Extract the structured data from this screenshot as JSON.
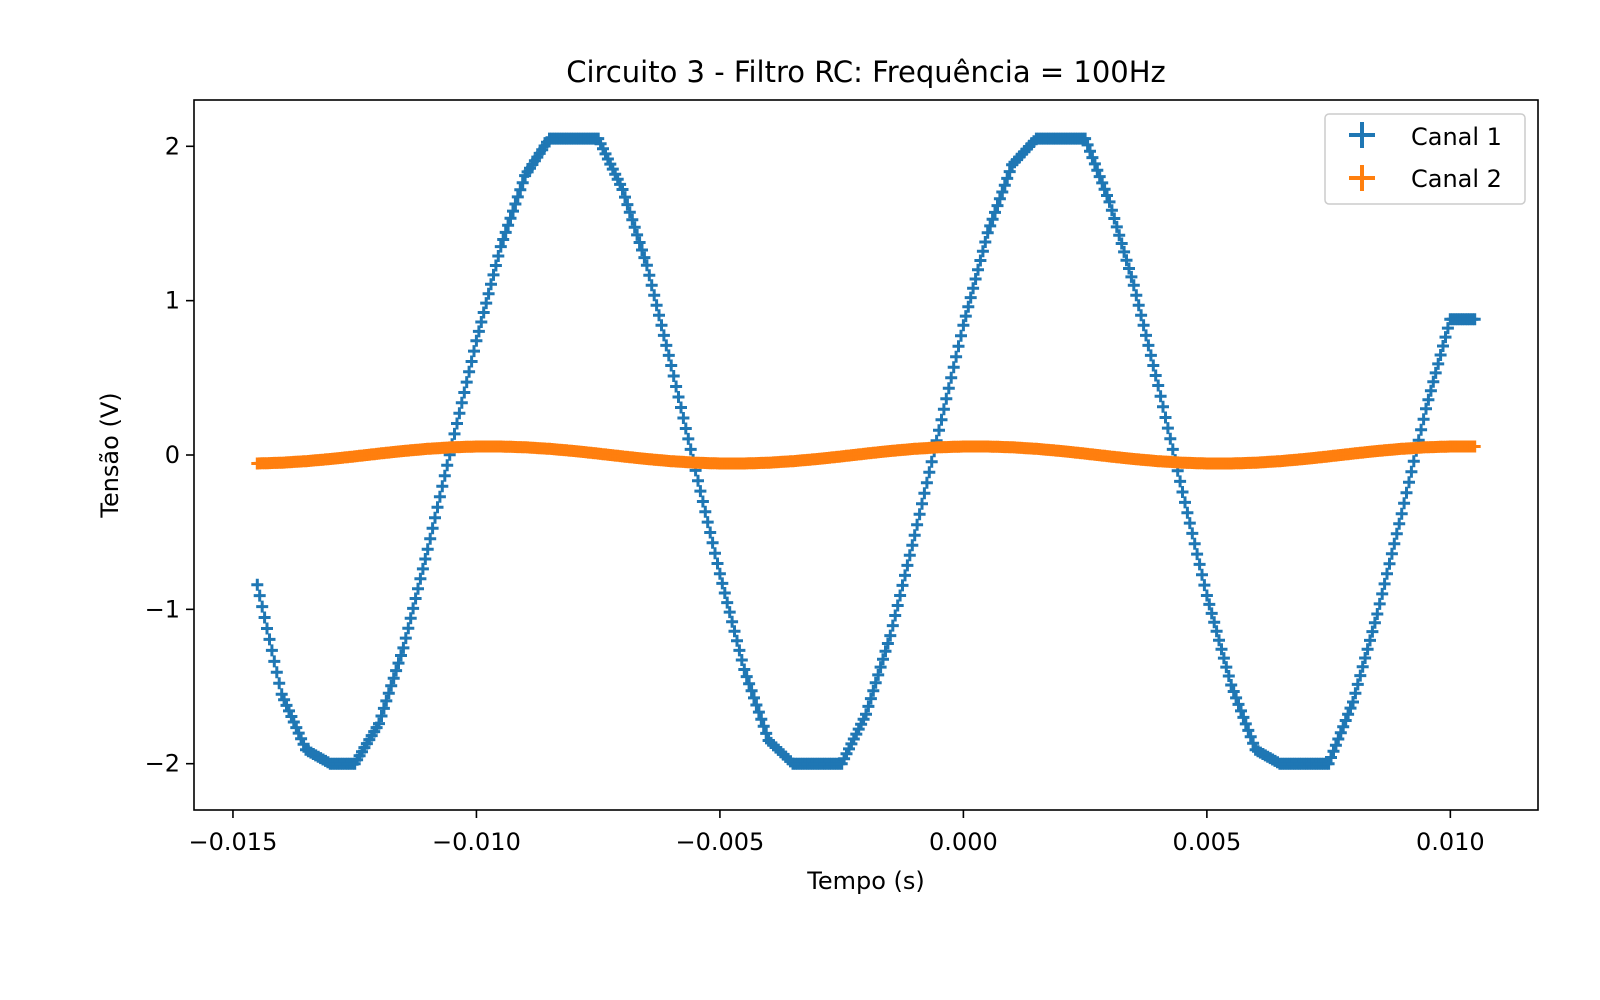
{
  "chart_data": {
    "type": "scatter",
    "title": "Circuito 3 - Filtro RC: Frequência = 100Hz",
    "xlabel": "Tempo (s)",
    "ylabel": "Tensão (V)",
    "xlim": [
      -0.0158,
      0.0118
    ],
    "ylim": [
      -2.3,
      2.3
    ],
    "xticks": [
      -0.015,
      -0.01,
      -0.005,
      0.0,
      0.005,
      0.01
    ],
    "xtick_labels": [
      "−0.015",
      "−0.010",
      "−0.005",
      "0.000",
      "0.005",
      "0.010"
    ],
    "yticks": [
      -2,
      -1,
      0,
      1,
      2
    ],
    "ytick_labels": [
      "−2",
      "−1",
      "0",
      "1",
      "2"
    ],
    "grid": false,
    "legend_position": "top-right",
    "marker": "+",
    "series": [
      {
        "name": "Canal 1",
        "color": "#1f77b4",
        "x": [
          -0.0145,
          -0.014,
          -0.0135,
          -0.013,
          -0.0125,
          -0.012,
          -0.0115,
          -0.011,
          -0.0105,
          -0.01,
          -0.0095,
          -0.009,
          -0.0085,
          -0.008,
          -0.0075,
          -0.007,
          -0.0065,
          -0.006,
          -0.0055,
          -0.005,
          -0.0045,
          -0.004,
          -0.0035,
          -0.003,
          -0.0025,
          -0.002,
          -0.0015,
          -0.001,
          -0.0005,
          0.0,
          0.0005,
          0.001,
          0.0015,
          0.002,
          0.0025,
          0.003,
          0.0035,
          0.004,
          0.0045,
          0.005,
          0.0055,
          0.006,
          0.0065,
          0.007,
          0.0075,
          0.008,
          0.0085,
          0.009,
          0.0095,
          0.01,
          0.0105
        ],
        "y": [
          -0.84,
          -1.55,
          -1.91,
          -2.0,
          -2.0,
          -1.74,
          -1.25,
          -0.61,
          0.07,
          0.74,
          1.35,
          1.81,
          2.05,
          2.05,
          2.05,
          1.72,
          1.23,
          0.58,
          -0.1,
          -0.77,
          -1.39,
          -1.85,
          -2.0,
          -2.0,
          -2.0,
          -1.68,
          -1.17,
          -0.52,
          0.16,
          0.84,
          1.44,
          1.88,
          2.05,
          2.05,
          2.05,
          1.64,
          1.1,
          0.45,
          -0.24,
          -0.91,
          -1.49,
          -1.91,
          -2.0,
          -2.0,
          -2.0,
          -1.6,
          -1.03,
          -0.38,
          0.3,
          0.88,
          0.88
        ]
      },
      {
        "name": "Canal 2",
        "color": "#ff7f0e",
        "x": [
          -0.0145,
          -0.014,
          -0.0135,
          -0.013,
          -0.0125,
          -0.012,
          -0.0115,
          -0.011,
          -0.0105,
          -0.01,
          -0.0095,
          -0.009,
          -0.0085,
          -0.008,
          -0.0075,
          -0.007,
          -0.0065,
          -0.006,
          -0.0055,
          -0.005,
          -0.0045,
          -0.004,
          -0.0035,
          -0.003,
          -0.0025,
          -0.002,
          -0.0015,
          -0.001,
          -0.0005,
          0.0,
          0.0005,
          0.001,
          0.0015,
          0.002,
          0.0025,
          0.003,
          0.0035,
          0.004,
          0.0045,
          0.005,
          0.0055,
          0.006,
          0.0065,
          0.007,
          0.0075,
          0.008,
          0.0085,
          0.009,
          0.0095,
          0.01,
          0.0105
        ],
        "y": [
          -0.055,
          -0.05,
          -0.04,
          -0.026,
          -0.009,
          0.009,
          0.026,
          0.04,
          0.05,
          0.055,
          0.055,
          0.05,
          0.04,
          0.026,
          0.009,
          -0.009,
          -0.026,
          -0.04,
          -0.05,
          -0.055,
          -0.055,
          -0.05,
          -0.04,
          -0.026,
          -0.009,
          0.009,
          0.026,
          0.04,
          0.05,
          0.055,
          0.055,
          0.05,
          0.04,
          0.026,
          0.009,
          -0.009,
          -0.026,
          -0.04,
          -0.05,
          -0.055,
          -0.055,
          -0.05,
          -0.04,
          -0.026,
          -0.009,
          0.009,
          0.026,
          0.04,
          0.05,
          0.055,
          0.055
        ]
      }
    ]
  }
}
